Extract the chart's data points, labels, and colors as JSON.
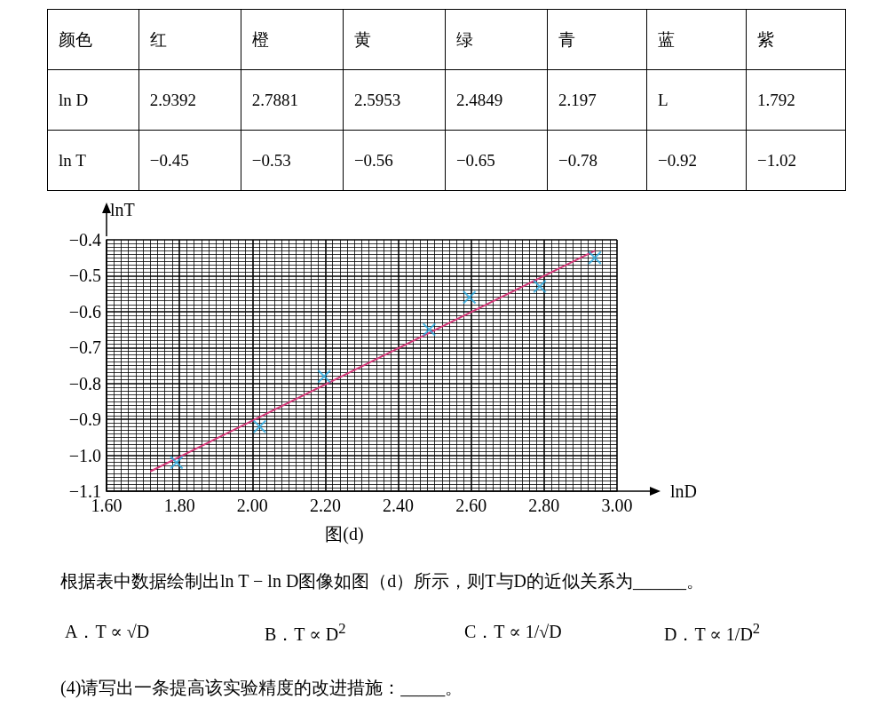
{
  "chart_data": [
    {
      "type": "other",
      "annotations": [
        "颜色",
        "红",
        "橙",
        "黄",
        "绿",
        "青",
        "蓝",
        "紫",
        "ln D",
        "2.9392",
        "2.7881",
        "2.5953",
        "2.4849",
        "2.197",
        "L",
        "1.792",
        "ln T",
        "−0.45",
        "−0.53",
        "−0.56",
        "−0.65",
        "−0.78",
        "−0.92",
        "−1.02"
      ]
    },
    {
      "type": "scatter",
      "xlabel": "lnD",
      "ylabel": "lnT",
      "xlim": [
        1.6,
        3.0
      ],
      "xticks": [
        {
          "value": 1.6,
          "label": "1.60"
        },
        {
          "value": 1.8,
          "label": "1.80"
        },
        {
          "value": 2.0,
          "label": "2.00"
        },
        {
          "value": 2.2,
          "label": "2.20"
        },
        {
          "value": 2.4,
          "label": "2.40"
        },
        {
          "value": 2.6,
          "label": "2.60"
        },
        {
          "value": 2.8,
          "label": "2.80"
        },
        {
          "value": 3.0,
          "label": "3.00"
        }
      ],
      "ylim": [
        -1.1,
        -0.4
      ],
      "yticks": [
        {
          "value": -1.1,
          "label": "−1.1"
        },
        {
          "value": -1.0,
          "label": "−1.0"
        },
        {
          "value": -0.9,
          "label": "−0.9"
        },
        {
          "value": -0.8,
          "label": "−0.8"
        },
        {
          "value": -0.7,
          "label": "−0.7"
        },
        {
          "value": -0.6,
          "label": "−0.6"
        },
        {
          "value": -0.5,
          "label": "−0.5"
        },
        {
          "value": -0.4,
          "label": "−0.4"
        }
      ],
      "grid": true,
      "series": [
        {
          "type": "scatter",
          "marker": "cross",
          "color": "#29abe2",
          "x": [
            2.9392,
            2.7881,
            2.5953,
            2.4849,
            2.197,
            2.02,
            1.792
          ],
          "values": [
            -0.45,
            -0.53,
            -0.56,
            -0.65,
            -0.78,
            -0.92,
            -1.02
          ]
        },
        {
          "type": "line",
          "color": "#d63a7a",
          "x": [
            1.72,
            2.94
          ],
          "values": [
            -1.045,
            -0.43
          ]
        }
      ],
      "annotations": [
        "图(d)",
        "根据表中数据绘制出ln T − ln D图像如图（d）所示，则T与D的近似关系为______。",
        "A．T ∝ √D",
        "B．T ∝ D$^{2}$",
        "C．T ∝ 1/√D",
        "D．T ∝ 1/D$^{2}$",
        "(4)请写出一条提高该实验精度的改进措施：_____。"
      ]
    }
  ]
}
